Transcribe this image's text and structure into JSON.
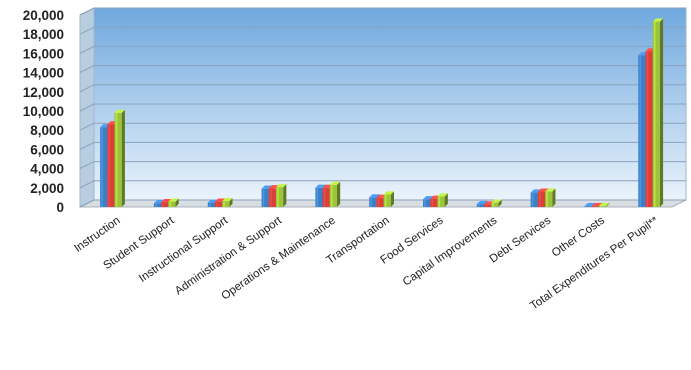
{
  "chart_data": {
    "type": "bar",
    "title": "",
    "xlabel": "",
    "ylabel": "",
    "ylim": [
      0,
      20000
    ],
    "yticks": [
      "20,000",
      "18,000",
      "16,000",
      "14,000",
      "12,000",
      "10,000",
      "8,000",
      "6,000",
      "4,000",
      "2,000",
      "0"
    ],
    "grid": true,
    "legend": "none",
    "categories": [
      "Instruction",
      "Student Support",
      "Instructional Support",
      "Administration & Support",
      "Operations & Maintenance",
      "Transportation",
      "Food Services",
      "Capital Improvements",
      "Debt Services",
      "Other Costs",
      "Total Expenditures Per Pupil**"
    ],
    "series": [
      {
        "color": "#3d7fc6",
        "values": [
          8300,
          400,
          450,
          1900,
          2000,
          1000,
          800,
          300,
          1500,
          80,
          15800
        ]
      },
      {
        "color": "#d9403a",
        "values": [
          8600,
          500,
          550,
          1950,
          2000,
          950,
          850,
          250,
          1600,
          80,
          16200
        ]
      },
      {
        "color": "#9bc43a",
        "values": [
          9800,
          550,
          600,
          2050,
          2300,
          1300,
          1100,
          450,
          1600,
          100,
          19300
        ]
      }
    ],
    "background": {
      "top": "#6fa8de",
      "bottom": "#eaf3fb"
    }
  }
}
